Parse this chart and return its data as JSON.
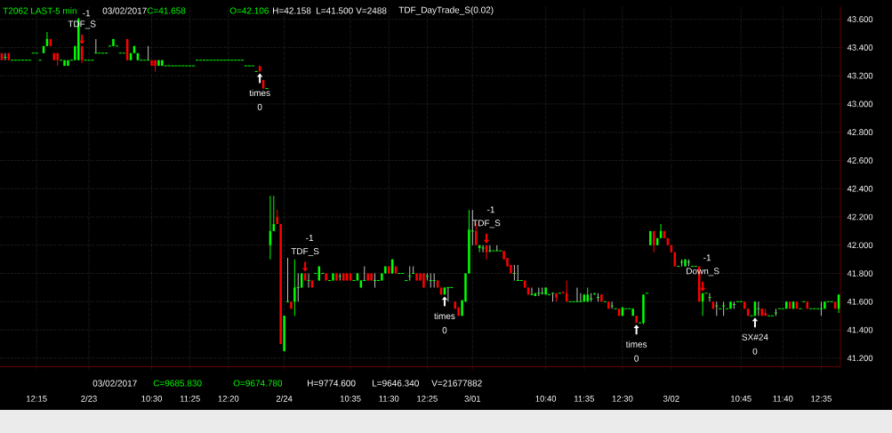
{
  "chart_data": {
    "type": "candlestick",
    "categories": [
      null,
      null,
      null,
      null,
      null,
      null,
      null,
      null,
      null,
      null,
      "12:15",
      null,
      null,
      null,
      null,
      null,
      null,
      null,
      null,
      null,
      null,
      null,
      null,
      null,
      null,
      "2/23",
      null,
      null,
      null,
      null,
      null,
      null,
      null,
      null,
      null,
      null,
      null,
      null,
      null,
      null,
      null,
      null,
      null,
      "10:30",
      null,
      null,
      null,
      null,
      null,
      null,
      null,
      null,
      null,
      null,
      "11:25",
      null,
      null,
      null,
      null,
      null,
      null,
      null,
      null,
      null,
      null,
      "12:20",
      null,
      null,
      null,
      null,
      null,
      null,
      null,
      null,
      null,
      null,
      null,
      null,
      null,
      null,
      null,
      "2/24",
      null,
      null,
      null,
      null,
      null,
      null,
      null,
      null,
      null,
      null,
      null,
      null,
      null,
      null,
      null,
      null,
      null,
      null,
      "10:35",
      null,
      null,
      null,
      null,
      null,
      null,
      null,
      null,
      null,
      null,
      "11:30",
      null,
      null,
      null,
      null,
      null,
      null,
      null,
      null,
      null,
      null,
      "12:25",
      null,
      null,
      null,
      null,
      null,
      null,
      null,
      null,
      null,
      null,
      null,
      null,
      "3/01",
      null,
      null,
      null,
      null,
      null,
      null,
      null,
      null,
      null,
      null,
      null,
      null,
      null,
      null,
      null,
      null,
      null,
      null,
      null,
      null,
      "10:40",
      null,
      null,
      null,
      null,
      null,
      null,
      null,
      null,
      null,
      null,
      "11:35",
      null,
      null,
      null,
      null,
      null,
      null,
      null,
      null,
      null,
      null,
      "12:30",
      null,
      null,
      null,
      null,
      null,
      null,
      null,
      null,
      null,
      null,
      null,
      null,
      null,
      "3/02",
      null,
      null,
      null,
      null,
      null,
      null,
      null,
      null,
      null,
      null,
      null,
      null,
      null,
      null,
      null,
      null,
      null,
      null,
      null,
      "10:45",
      null,
      null,
      null,
      null,
      null,
      null,
      null,
      null,
      null,
      null,
      null,
      "11:40",
      null,
      null,
      null,
      null,
      null,
      null,
      null,
      null,
      null,
      null,
      "12:35",
      null,
      null,
      null,
      null,
      null
    ],
    "ohlc": [
      [
        43.36,
        43.36,
        43.31,
        43.31
      ],
      [
        43.33,
        43.36,
        43.31,
        43.33
      ],
      [
        43.36,
        43.36,
        43.31,
        43.31
      ],
      [
        43.31,
        43.31,
        43.31,
        43.31
      ],
      [
        43.31,
        43.31,
        43.31,
        43.31
      ],
      [
        43.31,
        43.31,
        43.31,
        43.31
      ],
      [
        43.31,
        43.31,
        43.31,
        43.31
      ],
      [
        43.31,
        43.31,
        43.31,
        43.31
      ],
      [
        43.31,
        43.31,
        43.31,
        43.31
      ],
      [
        43.36,
        43.36,
        43.36,
        43.36
      ],
      [
        43.36,
        43.36,
        43.36,
        43.36
      ],
      [
        43.31,
        43.31,
        43.31,
        43.31
      ],
      [
        43.36,
        43.41,
        43.36,
        43.41
      ],
      [
        43.41,
        43.51,
        43.41,
        43.46
      ],
      [
        43.46,
        43.46,
        43.41,
        43.41
      ],
      [
        43.36,
        43.36,
        43.31,
        43.31
      ],
      [
        43.36,
        43.36,
        43.27,
        43.31
      ],
      [
        43.31,
        43.31,
        43.31,
        43.31
      ],
      [
        43.27,
        43.31,
        43.27,
        43.31
      ],
      [
        43.27,
        43.31,
        43.27,
        43.31
      ],
      [
        43.31,
        43.31,
        43.31,
        43.31
      ],
      [
        43.31,
        43.41,
        43.31,
        43.41
      ],
      [
        43.31,
        43.61,
        43.31,
        43.6
      ],
      [
        43.41,
        43.41,
        43.29,
        43.31
      ],
      [
        43.31,
        43.31,
        43.31,
        43.31
      ],
      [
        43.31,
        43.31,
        43.31,
        43.31
      ],
      [
        43.31,
        43.31,
        43.31,
        43.31
      ],
      [
        43.36,
        43.46,
        43.36,
        43.36
      ],
      [
        43.36,
        43.36,
        43.36,
        43.36
      ],
      [
        43.36,
        43.36,
        43.36,
        43.36
      ],
      [
        43.36,
        43.36,
        43.36,
        43.36
      ],
      [
        43.41,
        43.41,
        43.41,
        43.41
      ],
      [
        43.41,
        43.46,
        43.41,
        43.46
      ],
      [
        43.41,
        43.41,
        43.41,
        43.41
      ],
      [
        43.36,
        43.36,
        43.36,
        43.36
      ],
      [
        43.36,
        43.36,
        43.36,
        43.36
      ],
      [
        43.46,
        43.46,
        43.31,
        43.31
      ],
      [
        43.31,
        43.36,
        43.31,
        43.36
      ],
      [
        43.36,
        43.41,
        43.36,
        43.41
      ],
      [
        43.31,
        43.36,
        43.31,
        43.36
      ],
      [
        43.31,
        43.31,
        43.31,
        43.31
      ],
      [
        43.31,
        43.31,
        43.31,
        43.31
      ],
      [
        43.31,
        43.41,
        43.31,
        43.31
      ],
      [
        43.31,
        43.31,
        43.27,
        43.27
      ],
      [
        43.31,
        43.31,
        43.23,
        43.27
      ],
      [
        43.27,
        43.31,
        43.27,
        43.31
      ],
      [
        43.27,
        43.31,
        43.27,
        43.31
      ],
      [
        43.27,
        43.27,
        43.27,
        43.27
      ],
      [
        43.27,
        43.27,
        43.27,
        43.27
      ],
      [
        43.27,
        43.27,
        43.27,
        43.27
      ],
      [
        43.27,
        43.27,
        43.27,
        43.27
      ],
      [
        43.27,
        43.27,
        43.27,
        43.27
      ],
      [
        43.27,
        43.27,
        43.27,
        43.27
      ],
      [
        43.27,
        43.27,
        43.27,
        43.27
      ],
      [
        43.27,
        43.27,
        43.27,
        43.27
      ],
      [
        43.27,
        43.27,
        43.27,
        43.27
      ],
      [
        43.31,
        43.31,
        43.31,
        43.31
      ],
      [
        43.31,
        43.31,
        43.31,
        43.31
      ],
      [
        43.31,
        43.31,
        43.31,
        43.31
      ],
      [
        43.31,
        43.31,
        43.31,
        43.31
      ],
      [
        43.31,
        43.31,
        43.31,
        43.31
      ],
      [
        43.31,
        43.31,
        43.31,
        43.31
      ],
      [
        43.31,
        43.31,
        43.31,
        43.31
      ],
      [
        43.31,
        43.31,
        43.31,
        43.31
      ],
      [
        43.31,
        43.31,
        43.31,
        43.31
      ],
      [
        43.31,
        43.31,
        43.31,
        43.31
      ],
      [
        43.31,
        43.31,
        43.31,
        43.31
      ],
      [
        43.31,
        43.31,
        43.31,
        43.31
      ],
      [
        43.31,
        43.31,
        43.31,
        43.31
      ],
      [
        43.31,
        43.31,
        43.31,
        43.31
      ],
      [
        43.27,
        43.27,
        43.27,
        43.27
      ],
      [
        43.27,
        43.27,
        43.27,
        43.27
      ],
      [
        43.27,
        43.27,
        43.27,
        43.27
      ],
      [
        43.23,
        43.23,
        43.23,
        43.23
      ],
      [
        43.27,
        43.27,
        43.23,
        43.23
      ],
      [
        43.17,
        43.17,
        43.11,
        43.11
      ],
      [
        43.11,
        43.11,
        43.11,
        43.11
      ],
      [
        42.0,
        42.35,
        41.9,
        42.1
      ],
      [
        42.1,
        42.35,
        42.1,
        42.15
      ],
      [
        42.2,
        42.25,
        42.15,
        42.15
      ],
      [
        42.15,
        42.15,
        41.3,
        41.3
      ],
      [
        41.25,
        41.5,
        41.25,
        41.5
      ],
      [
        41.6,
        41.91,
        41.6,
        41.6
      ],
      [
        41.6,
        41.6,
        41.55,
        41.55
      ],
      [
        41.6,
        41.9,
        41.5,
        41.7
      ],
      [
        41.7,
        41.8,
        41.6,
        41.7
      ],
      [
        41.7,
        41.8,
        41.7,
        41.8
      ],
      [
        41.8,
        41.8,
        41.75,
        41.75
      ],
      [
        41.75,
        41.8,
        41.7,
        41.75
      ],
      [
        41.75,
        41.75,
        41.7,
        41.7
      ],
      [
        41.8,
        41.8,
        41.8,
        41.8
      ],
      [
        41.75,
        41.85,
        41.75,
        41.85
      ],
      [
        41.8,
        41.8,
        41.8,
        41.8
      ],
      [
        41.8,
        41.8,
        41.75,
        41.75
      ],
      [
        41.75,
        41.75,
        41.75,
        41.75
      ],
      [
        41.75,
        41.8,
        41.75,
        41.8
      ],
      [
        41.8,
        41.8,
        41.75,
        41.75
      ],
      [
        41.78,
        41.8,
        41.75,
        41.78
      ],
      [
        41.8,
        41.8,
        41.75,
        41.75
      ],
      [
        41.8,
        41.8,
        41.75,
        41.75
      ],
      [
        41.8,
        41.8,
        41.75,
        41.75
      ],
      [
        41.75,
        41.75,
        41.75,
        41.75
      ],
      [
        41.75,
        41.8,
        41.75,
        41.8
      ],
      [
        41.7,
        41.75,
        41.7,
        41.75
      ],
      [
        41.75,
        41.85,
        41.75,
        41.75
      ],
      [
        41.8,
        41.8,
        41.75,
        41.75
      ],
      [
        41.8,
        41.8,
        41.75,
        41.75
      ],
      [
        41.75,
        41.8,
        41.7,
        41.75
      ],
      [
        41.75,
        41.75,
        41.75,
        41.75
      ],
      [
        41.75,
        41.8,
        41.75,
        41.8
      ],
      [
        41.8,
        41.85,
        41.8,
        41.85
      ],
      [
        41.85,
        41.85,
        41.8,
        41.8
      ],
      [
        41.8,
        41.9,
        41.8,
        41.9
      ],
      [
        41.85,
        41.85,
        41.8,
        41.8
      ],
      [
        41.8,
        41.8,
        41.8,
        41.8
      ],
      [
        41.8,
        41.8,
        41.8,
        41.8
      ],
      [
        41.75,
        41.75,
        41.75,
        41.75
      ],
      [
        41.78,
        41.85,
        41.75,
        41.78
      ],
      [
        41.8,
        41.85,
        41.8,
        41.8
      ],
      [
        41.8,
        41.8,
        41.75,
        41.75
      ],
      [
        41.8,
        41.8,
        41.75,
        41.75
      ],
      [
        41.8,
        41.8,
        41.7,
        41.7
      ],
      [
        41.78,
        41.8,
        41.75,
        41.78
      ],
      [
        41.75,
        41.8,
        41.7,
        41.75
      ],
      [
        41.75,
        41.8,
        41.7,
        41.75
      ],
      [
        41.75,
        41.75,
        41.7,
        41.7
      ],
      [
        41.7,
        41.7,
        41.65,
        41.65
      ],
      [
        41.65,
        41.7,
        41.65,
        41.7
      ],
      [
        41.7,
        41.7,
        41.6,
        41.7
      ],
      [
        41.7,
        41.7,
        41.7,
        41.7
      ],
      [
        41.6,
        41.6,
        41.55,
        41.55
      ],
      [
        41.56,
        41.56,
        41.5,
        41.5
      ],
      [
        41.5,
        41.61,
        41.5,
        41.61
      ],
      [
        41.6,
        41.8,
        41.6,
        41.8
      ],
      [
        41.8,
        42.25,
        41.8,
        42.11
      ],
      [
        42.1,
        42.25,
        42.0,
        42.1
      ],
      [
        42.1,
        42.16,
        42.0,
        42.0
      ],
      [
        41.98,
        42.0,
        41.95,
        42.0
      ],
      [
        41.98,
        42.0,
        41.95,
        41.98
      ],
      [
        42.0,
        42.0,
        41.9,
        41.95
      ],
      [
        41.96,
        42.0,
        41.95,
        41.96
      ],
      [
        41.96,
        41.96,
        41.96,
        41.96
      ],
      [
        41.96,
        42.0,
        41.96,
        41.96
      ],
      [
        41.96,
        41.96,
        41.96,
        41.96
      ],
      [
        41.96,
        41.96,
        41.9,
        41.9
      ],
      [
        41.91,
        41.91,
        41.85,
        41.85
      ],
      [
        41.86,
        41.86,
        41.8,
        41.8
      ],
      [
        41.8,
        41.86,
        41.75,
        41.8
      ],
      [
        41.75,
        41.86,
        41.75,
        41.75
      ],
      [
        41.75,
        41.75,
        41.75,
        41.75
      ],
      [
        41.75,
        41.75,
        41.7,
        41.7
      ],
      [
        41.7,
        41.7,
        41.65,
        41.65
      ],
      [
        41.65,
        41.7,
        41.65,
        41.65
      ],
      [
        41.64,
        41.66,
        41.64,
        41.66
      ],
      [
        41.66,
        41.7,
        41.64,
        41.66
      ],
      [
        41.66,
        41.7,
        41.65,
        41.66
      ],
      [
        41.65,
        41.7,
        41.65,
        41.7
      ],
      [
        41.65,
        41.65,
        41.65,
        41.65
      ],
      [
        41.66,
        41.66,
        41.6,
        41.66
      ],
      [
        41.66,
        41.66,
        41.6,
        41.63
      ],
      [
        41.66,
        41.66,
        41.66,
        41.66
      ],
      [
        41.67,
        41.67,
        41.66,
        41.66
      ],
      [
        41.66,
        41.75,
        41.6,
        41.6
      ],
      [
        41.6,
        41.6,
        41.6,
        41.6
      ],
      [
        41.6,
        41.6,
        41.6,
        41.6
      ],
      [
        41.6,
        41.7,
        41.6,
        41.6
      ],
      [
        41.6,
        41.66,
        41.6,
        41.6
      ],
      [
        41.6,
        41.65,
        41.6,
        41.65
      ],
      [
        41.6,
        41.7,
        41.6,
        41.65
      ],
      [
        41.62,
        41.66,
        41.6,
        41.62
      ],
      [
        41.65,
        41.66,
        41.65,
        41.66
      ],
      [
        41.63,
        41.66,
        41.6,
        41.63
      ],
      [
        41.65,
        41.65,
        41.6,
        41.6
      ],
      [
        41.6,
        41.6,
        41.6,
        41.6
      ],
      [
        41.6,
        41.6,
        41.55,
        41.55
      ],
      [
        41.57,
        41.6,
        41.55,
        41.57
      ],
      [
        41.55,
        41.55,
        41.55,
        41.55
      ],
      [
        41.55,
        41.55,
        41.5,
        41.5
      ],
      [
        41.5,
        41.56,
        41.5,
        41.56
      ],
      [
        41.55,
        41.55,
        41.55,
        41.55
      ],
      [
        41.55,
        41.55,
        41.55,
        41.55
      ],
      [
        41.5,
        41.55,
        41.5,
        41.55
      ],
      [
        41.5,
        41.5,
        41.45,
        41.45
      ],
      [
        41.45,
        41.45,
        41.45,
        41.45
      ],
      [
        41.45,
        41.65,
        41.44,
        41.65
      ],
      [
        41.66,
        41.66,
        41.66,
        41.66
      ],
      [
        42.0,
        42.1,
        42.0,
        42.1
      ],
      [
        42.1,
        42.1,
        41.95,
        42.0
      ],
      [
        42.0,
        42.05,
        42.0,
        42.05
      ],
      [
        42.05,
        42.15,
        42.05,
        42.1
      ],
      [
        42.1,
        42.1,
        42.05,
        42.05
      ],
      [
        42.05,
        42.05,
        42.0,
        42.0
      ],
      [
        42.0,
        42.0,
        41.95,
        41.95
      ],
      [
        41.95,
        41.95,
        41.85,
        41.85
      ],
      [
        41.85,
        41.85,
        41.85,
        41.85
      ],
      [
        41.88,
        41.9,
        41.85,
        41.88
      ],
      [
        41.85,
        41.9,
        41.85,
        41.9
      ],
      [
        41.88,
        41.9,
        41.85,
        41.88
      ],
      [
        41.85,
        41.85,
        41.85,
        41.85
      ],
      [
        41.85,
        41.85,
        41.85,
        41.85
      ],
      [
        41.85,
        41.85,
        41.6,
        41.6
      ],
      [
        41.6,
        41.66,
        41.5,
        41.66
      ],
      [
        41.66,
        41.66,
        41.66,
        41.66
      ],
      [
        41.63,
        41.66,
        41.6,
        41.63
      ],
      [
        41.6,
        41.6,
        41.55,
        41.55
      ],
      [
        41.57,
        41.6,
        41.5,
        41.57
      ],
      [
        41.55,
        41.55,
        41.55,
        41.55
      ],
      [
        41.57,
        41.6,
        41.5,
        41.57
      ],
      [
        41.55,
        41.55,
        41.55,
        41.55
      ],
      [
        41.55,
        41.6,
        41.55,
        41.6
      ],
      [
        41.58,
        41.6,
        41.55,
        41.58
      ],
      [
        41.6,
        41.6,
        41.6,
        41.6
      ],
      [
        41.6,
        41.6,
        41.6,
        41.6
      ],
      [
        41.6,
        41.6,
        41.55,
        41.55
      ],
      [
        41.55,
        41.55,
        41.5,
        41.5
      ],
      [
        41.5,
        41.5,
        41.5,
        41.5
      ],
      [
        41.5,
        41.6,
        41.5,
        41.6
      ],
      [
        41.55,
        41.6,
        41.5,
        41.55
      ],
      [
        41.55,
        41.55,
        41.5,
        41.5
      ],
      [
        41.52,
        41.55,
        41.5,
        41.5
      ],
      [
        41.5,
        41.5,
        41.5,
        41.5
      ],
      [
        41.5,
        41.5,
        41.5,
        41.5
      ],
      [
        41.52,
        41.55,
        41.5,
        41.52
      ],
      [
        41.55,
        41.55,
        41.55,
        41.55
      ],
      [
        41.55,
        41.55,
        41.55,
        41.55
      ],
      [
        41.55,
        41.6,
        41.55,
        41.6
      ],
      [
        41.6,
        41.6,
        41.55,
        41.55
      ],
      [
        41.55,
        41.6,
        41.55,
        41.6
      ],
      [
        41.6,
        41.6,
        41.55,
        41.55
      ],
      [
        41.55,
        41.55,
        41.55,
        41.55
      ],
      [
        41.6,
        41.6,
        41.6,
        41.6
      ],
      [
        41.6,
        41.6,
        41.55,
        41.55
      ],
      [
        41.55,
        41.55,
        41.55,
        41.55
      ],
      [
        41.55,
        41.55,
        41.55,
        41.55
      ],
      [
        41.55,
        41.55,
        41.55,
        41.55
      ],
      [
        41.55,
        41.6,
        41.5,
        41.55
      ],
      [
        41.55,
        41.6,
        41.55,
        41.6
      ],
      [
        41.6,
        41.6,
        41.6,
        41.6
      ],
      [
        41.6,
        41.6,
        41.6,
        41.6
      ],
      [
        41.6,
        41.6,
        41.55,
        41.55
      ],
      [
        41.55,
        41.65,
        41.52,
        41.65
      ]
    ],
    "ylim": [
      41.14,
      43.69
    ],
    "yticks": [
      {
        "value": 41.2,
        "label": "41.200"
      },
      {
        "value": 41.4,
        "label": "41.400"
      },
      {
        "value": 41.6,
        "label": "41.600"
      },
      {
        "value": 41.8,
        "label": "41.800"
      },
      {
        "value": 42.0,
        "label": "42.000"
      },
      {
        "value": 42.2,
        "label": "42.200"
      },
      {
        "value": 42.4,
        "label": "42.400"
      },
      {
        "value": 42.6,
        "label": "42.600"
      },
      {
        "value": 42.8,
        "label": "42.800"
      },
      {
        "value": 43.0,
        "label": "43.000"
      },
      {
        "value": 43.2,
        "label": "43.200"
      },
      {
        "value": 43.4,
        "label": "43.400"
      },
      {
        "value": 43.6,
        "label": "43.600"
      }
    ],
    "grid": true,
    "annotations": [
      "T2062 LAST-5 min",
      "03/02/2017",
      "C=41.658",
      "O=42.106",
      "H=42.158",
      "L=41.500",
      "V=2488",
      "TDF_DayTrade_S(0.02)",
      "03/02/2017",
      "C=9685.830",
      "O=9674.780",
      "H=9774.600",
      "L=9646.340",
      "V=21677882",
      "-1",
      "TDF_S",
      "times",
      "0",
      "-1",
      "TDF_S",
      "times",
      "0",
      "-1",
      "TDF_S",
      "times",
      "0",
      "-1",
      "Down_S",
      "SX#24",
      "0"
    ]
  }
}
